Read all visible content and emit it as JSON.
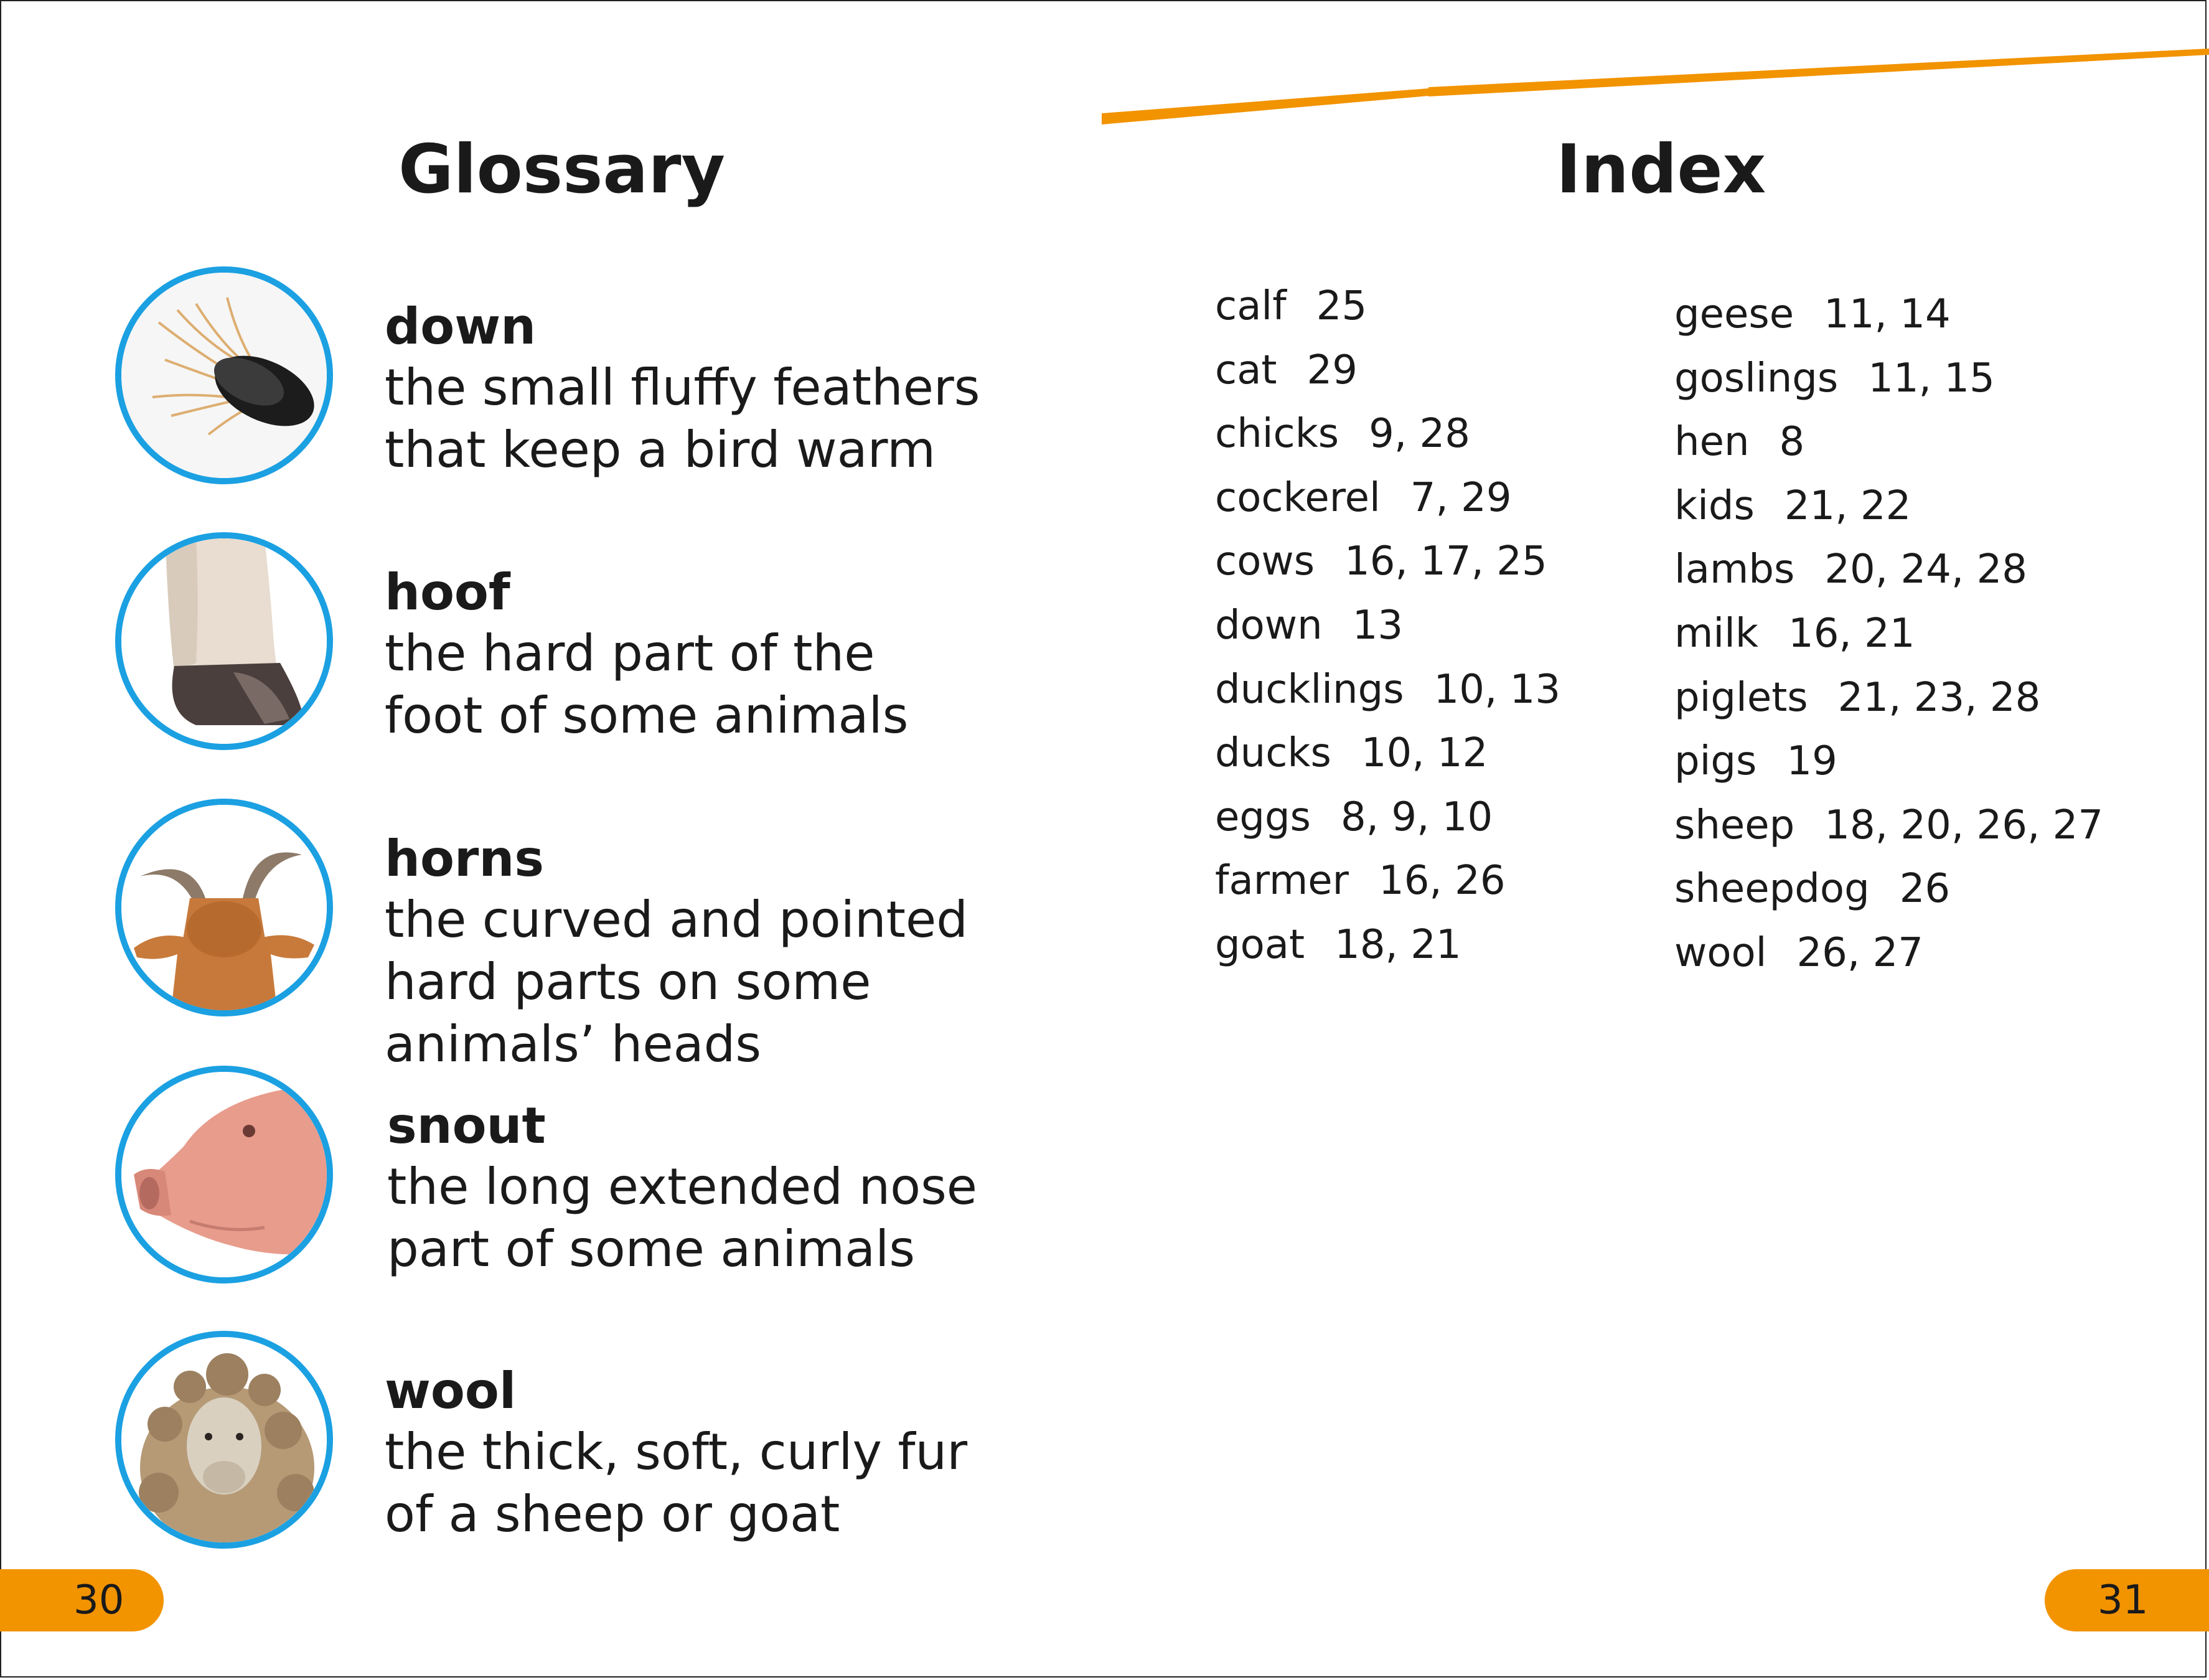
{
  "colors": {
    "accent_orange": "#f29300",
    "circle_blue": "#1ba0e2",
    "text": "#1a1a1a"
  },
  "glossary": {
    "title": "Glossary",
    "entries": [
      {
        "term": "down",
        "icon": "feather-photo",
        "lines": [
          "the small fluffy feathers",
          "that keep a bird warm"
        ]
      },
      {
        "term": "hoof",
        "icon": "hoof-photo",
        "lines": [
          "the hard part of the",
          "foot of some animals"
        ]
      },
      {
        "term": "horns",
        "icon": "goat-horns-photo",
        "lines": [
          "the curved and pointed",
          "hard parts on some",
          "animals’ heads"
        ]
      },
      {
        "term": "snout",
        "icon": "pig-snout-photo",
        "lines": [
          "the long extended nose",
          "part of some animals"
        ]
      },
      {
        "term": "wool",
        "icon": "sheep-wool-photo",
        "lines": [
          "the thick, soft, curly fur",
          "of a sheep or goat"
        ]
      }
    ]
  },
  "index": {
    "title": "Index",
    "left_column": [
      {
        "word": "calf",
        "pages": "25"
      },
      {
        "word": "cat",
        "pages": "29"
      },
      {
        "word": "chicks",
        "pages": "9, 28"
      },
      {
        "word": "cockerel",
        "pages": "7, 29"
      },
      {
        "word": "cows",
        "pages": "16, 17, 25"
      },
      {
        "word": "down",
        "pages": "13"
      },
      {
        "word": "ducklings",
        "pages": "10, 13"
      },
      {
        "word": "ducks",
        "pages": "10, 12"
      },
      {
        "word": "eggs",
        "pages": "8, 9, 10"
      },
      {
        "word": "farmer",
        "pages": "16, 26"
      },
      {
        "word": "goat",
        "pages": "18, 21"
      }
    ],
    "right_column": [
      {
        "word": "geese",
        "pages": "11, 14"
      },
      {
        "word": "goslings",
        "pages": "11, 15"
      },
      {
        "word": "hen",
        "pages": "8"
      },
      {
        "word": "kids",
        "pages": "21, 22"
      },
      {
        "word": "lambs",
        "pages": "20, 24, 28"
      },
      {
        "word": "milk",
        "pages": "16, 21"
      },
      {
        "word": "piglets",
        "pages": "21, 23, 28"
      },
      {
        "word": "pigs",
        "pages": "19"
      },
      {
        "word": "sheep",
        "pages": "18, 20, 26, 27"
      },
      {
        "word": "sheepdog",
        "pages": "26"
      },
      {
        "word": "wool",
        "pages": "26, 27"
      }
    ]
  },
  "page_numbers": {
    "left": "30",
    "right": "31"
  }
}
